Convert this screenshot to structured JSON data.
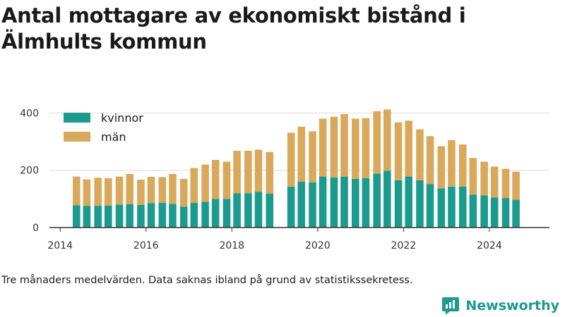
{
  "title": "Antal mottagare av ekonomiskt bistånd i Älmhults kommun",
  "footnote": "Tre månaders medelvärden. Data saknas ibland på grund av statistikssekretess.",
  "brand": {
    "name": "Newsworthy",
    "icon": "newsworthy-logo-icon"
  },
  "colors": {
    "kvinnor": "#1a9b8e",
    "man": "#d9a95b",
    "grid": "#dddddd",
    "axis": "#333333"
  },
  "chart_data": {
    "type": "bar",
    "stacked": true,
    "title": "Antal mottagare av ekonomiskt bistånd i Älmhults kommun",
    "xlabel": "",
    "ylabel": "",
    "ylim": [
      0,
      450
    ],
    "xlim": [
      2013.75,
      2025.4
    ],
    "yticks": [
      0,
      200,
      400
    ],
    "xticks": [
      2014,
      2016,
      2018,
      2020,
      2022,
      2024
    ],
    "grid": "horizontal",
    "legend_position": "top-left",
    "x": [
      2014.38,
      2014.62,
      2014.88,
      2015.12,
      2015.38,
      2015.62,
      2015.88,
      2016.12,
      2016.38,
      2016.62,
      2016.88,
      2017.12,
      2017.38,
      2017.62,
      2017.88,
      2018.12,
      2018.38,
      2018.62,
      2018.88,
      2019.38,
      2019.62,
      2019.88,
      2020.12,
      2020.38,
      2020.62,
      2020.88,
      2021.12,
      2021.38,
      2021.62,
      2021.88,
      2022.12,
      2022.38,
      2022.62,
      2022.88,
      2023.12,
      2023.38,
      2023.62,
      2023.88,
      2024.12,
      2024.38,
      2024.62
    ],
    "series": [
      {
        "name": "kvinnor",
        "color": "#1a9b8e",
        "values": [
          78,
          76,
          76,
          77,
          80,
          82,
          79,
          85,
          86,
          83,
          73,
          86,
          90,
          100,
          100,
          120,
          120,
          125,
          118,
          143,
          160,
          158,
          178,
          175,
          178,
          170,
          172,
          188,
          198,
          165,
          178,
          165,
          152,
          137,
          143,
          143,
          115,
          112,
          105,
          103,
          97
        ]
      },
      {
        "name": "män",
        "color": "#d9a95b",
        "values": [
          100,
          92,
          98,
          95,
          98,
          105,
          88,
          92,
          90,
          104,
          97,
          122,
          130,
          136,
          130,
          148,
          148,
          147,
          146,
          188,
          192,
          178,
          202,
          212,
          218,
          210,
          210,
          218,
          214,
          202,
          195,
          178,
          167,
          147,
          162,
          147,
          128,
          118,
          108,
          102,
          98
        ]
      }
    ]
  }
}
